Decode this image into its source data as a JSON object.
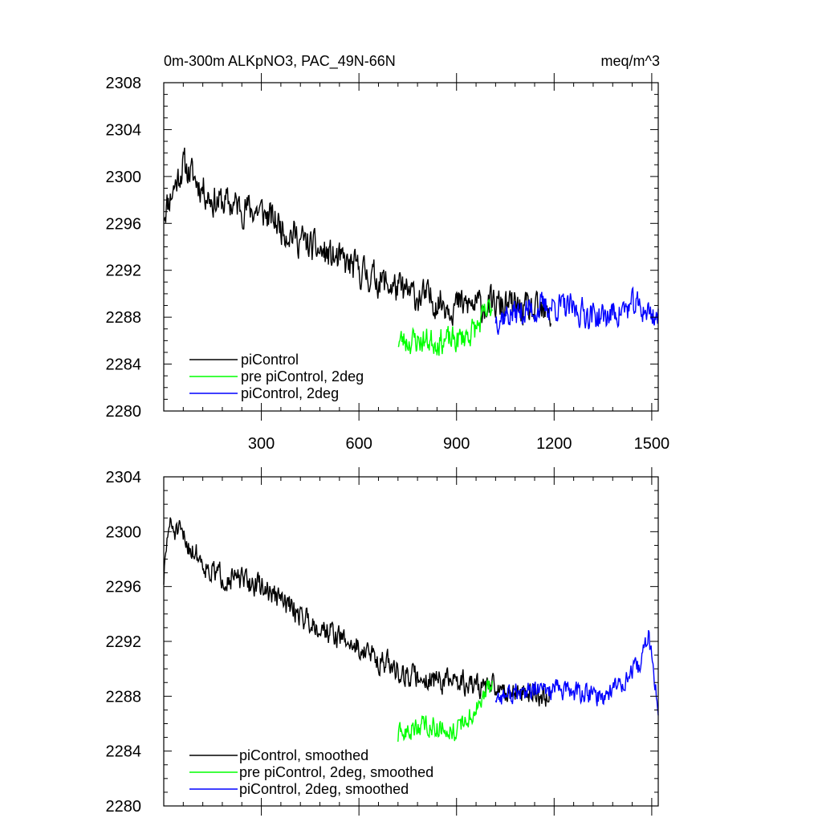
{
  "chart_data": [
    {
      "type": "line",
      "title": "0m-300m ALKpNO3, PAC_49N-66N",
      "units": "meq/m^3",
      "xlabel": "",
      "ylabel": "",
      "xlim": [
        0,
        1520
      ],
      "ylim": [
        2280,
        2308
      ],
      "xticks": [
        300,
        600,
        900,
        1200,
        1500
      ],
      "yticks": [
        2280,
        2284,
        2288,
        2292,
        2296,
        2300,
        2304,
        2308
      ],
      "legend": "bottom-left",
      "series": [
        {
          "name": "piControl",
          "color": "#000000",
          "x_start": 0,
          "x_end": 1190,
          "base": [
            [
              0,
              2297
            ],
            [
              60,
              2301
            ],
            [
              150,
              2298
            ],
            [
              300,
              2297
            ],
            [
              450,
              2294
            ],
            [
              600,
              2292
            ],
            [
              750,
              2290
            ],
            [
              900,
              2289
            ],
            [
              1050,
              2289
            ],
            [
              1190,
              2288
            ]
          ],
          "amp": 2.2,
          "seed": 11
        },
        {
          "name": "pre piControl, 2deg",
          "color": "#00ff00",
          "x_start": 720,
          "x_end": 1010,
          "base": [
            [
              720,
              2286
            ],
            [
              800,
              2286
            ],
            [
              900,
              2286
            ],
            [
              960,
              2287
            ],
            [
              1010,
              2289
            ]
          ],
          "amp": 1.8,
          "seed": 23
        },
        {
          "name": "piControl, 2deg",
          "color": "#0000ff",
          "x_start": 1020,
          "x_end": 1520,
          "base": [
            [
              1020,
              2288
            ],
            [
              1200,
              2289
            ],
            [
              1350,
              2288
            ],
            [
              1450,
              2289
            ],
            [
              1520,
              2288
            ]
          ],
          "amp": 1.9,
          "seed": 37
        }
      ]
    },
    {
      "type": "line",
      "title": "",
      "xlabel": "",
      "ylabel": "",
      "xlim": [
        0,
        1520
      ],
      "ylim": [
        2280,
        2304
      ],
      "yticks": [
        2280,
        2284,
        2288,
        2292,
        2296,
        2300,
        2304
      ],
      "legend": "bottom-left",
      "series": [
        {
          "name": "piControl, smoothed",
          "color": "#000000",
          "x_start": 0,
          "x_end": 1190,
          "base": [
            [
              0,
              2296.5
            ],
            [
              15,
              2300.5
            ],
            [
              60,
              2299.5
            ],
            [
              150,
              2297
            ],
            [
              300,
              2296
            ],
            [
              450,
              2293.5
            ],
            [
              600,
              2291.5
            ],
            [
              750,
              2289.5
            ],
            [
              900,
              2289
            ],
            [
              1050,
              2288.5
            ],
            [
              1190,
              2288
            ]
          ],
          "amp": 1.4,
          "seed": 51
        },
        {
          "name": "pre piControl, 2deg, smoothed",
          "color": "#00ff00",
          "x_start": 720,
          "x_end": 1010,
          "base": [
            [
              720,
              2285
            ],
            [
              800,
              2286
            ],
            [
              900,
              2285.5
            ],
            [
              960,
              2287
            ],
            [
              1010,
              2289
            ]
          ],
          "amp": 1.2,
          "seed": 63
        },
        {
          "name": "piControl, 2deg, smoothed",
          "color": "#0000ff",
          "x_start": 1020,
          "x_end": 1520,
          "base": [
            [
              1020,
              2288
            ],
            [
              1200,
              2288.5
            ],
            [
              1350,
              2288
            ],
            [
              1460,
              2290
            ],
            [
              1490,
              2292.5
            ],
            [
              1520,
              2287
            ]
          ],
          "amp": 1.2,
          "seed": 77
        }
      ]
    }
  ]
}
